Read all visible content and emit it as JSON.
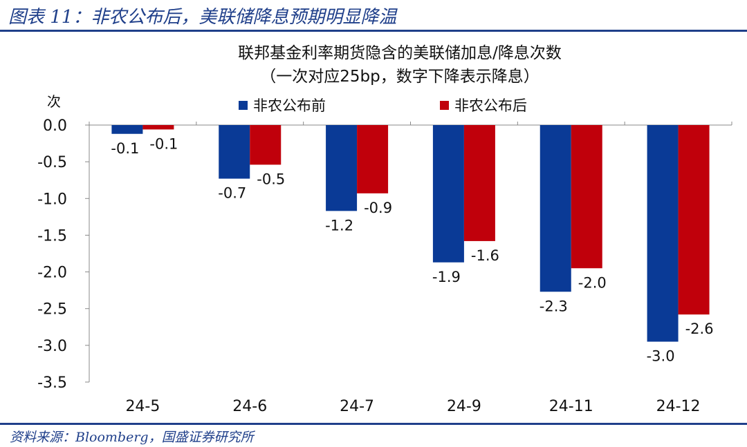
{
  "figure_title": "图表 11：非农公布后，美联储降息预期明显降温",
  "source_note": "资料来源：Bloomberg，国盛证券研究所",
  "colors": {
    "before": "#0a3a96",
    "after": "#c0000b",
    "accent": "#1f3f8a"
  },
  "chart_data": {
    "type": "bar",
    "title": "联邦基金利率期货隐含的美联储加息/降息次数",
    "subtitle": "（一次对应25bp，数字下降表示降息）",
    "ylabel": "次",
    "xlabel": "",
    "categories": [
      "24-5",
      "24-6",
      "24-7",
      "24-9",
      "24-11",
      "24-12"
    ],
    "series": [
      {
        "name": "非农公布前",
        "values": [
          -0.12,
          -0.73,
          -1.17,
          -1.87,
          -2.27,
          -2.95
        ],
        "labels": [
          "-0.1",
          "-0.7",
          "-1.2",
          "-1.9",
          "-2.3",
          "-3.0"
        ]
      },
      {
        "name": "非农公布后",
        "values": [
          -0.06,
          -0.54,
          -0.93,
          -1.58,
          -1.95,
          -2.58
        ],
        "labels": [
          "-0.1",
          "-0.5",
          "-0.9",
          "-1.6",
          "-2.0",
          "-2.6"
        ]
      }
    ],
    "ylim": [
      -3.5,
      0
    ],
    "yticks": [
      0,
      -0.5,
      -1,
      -1.5,
      -2,
      -2.5,
      -3,
      -3.5
    ],
    "ytick_labels": [
      "0.0",
      "-0.5",
      "-1.0",
      "-1.5",
      "-2.0",
      "-2.5",
      "-3.0",
      "-3.5"
    ],
    "legend_position": "top-center",
    "grid": false
  }
}
